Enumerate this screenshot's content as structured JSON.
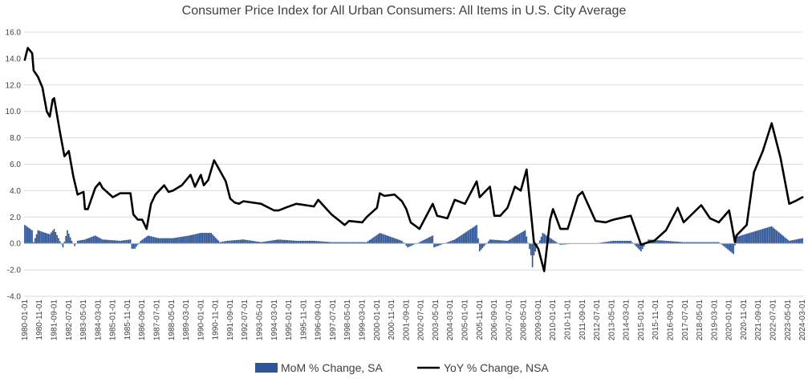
{
  "chart_data": {
    "type": "bar+line",
    "title": "Consumer Price Index for All Urban Consumers: All Items in U.S. City Average",
    "ylim": [
      -4.0,
      16.0
    ],
    "yticks": [
      "16.0",
      "14.0",
      "12.0",
      "10.0",
      "8.0",
      "6.0",
      "4.0",
      "2.0",
      "0.0",
      "-2.0",
      "-4.0"
    ],
    "ytick_values": [
      16,
      14,
      12,
      10,
      8,
      6,
      4,
      2,
      0,
      -2,
      -4
    ],
    "grid": "horizontal",
    "legend_position": "bottom",
    "x_range": [
      "1980-01-01",
      "2024-03-01"
    ],
    "xticks": [
      "1980-01-01",
      "1980-11-01",
      "1981-09-01",
      "1982-07-01",
      "1983-05-01",
      "1984-03-01",
      "1985-01-01",
      "1985-11-01",
      "1986-09-01",
      "1987-07-01",
      "1988-05-01",
      "1989-03-01",
      "1990-01-01",
      "1990-11-01",
      "1991-09-01",
      "1992-07-01",
      "1993-05-01",
      "1994-03-01",
      "1995-01-01",
      "1995-11-01",
      "1996-09-01",
      "1997-07-01",
      "1998-05-01",
      "1999-03-01",
      "2000-01-01",
      "2000-11-01",
      "2001-09-01",
      "2002-07-01",
      "2003-05-01",
      "2004-03-01",
      "2005-01-01",
      "2005-11-01",
      "2006-09-01",
      "2007-07-01",
      "2008-05-01",
      "2009-03-01",
      "2010-01-01",
      "2010-11-01",
      "2011-09-01",
      "2012-07-01",
      "2013-05-01",
      "2014-03-01",
      "2015-01-01",
      "2015-11-01",
      "2016-09-01",
      "2017-07-01",
      "2018-05-01",
      "2019-03-01",
      "2020-01-01",
      "2020-11-01",
      "2021-09-01",
      "2022-07-01",
      "2023-05-01",
      "2024-03-01"
    ],
    "series": [
      {
        "name": "MoM % Change, SA",
        "type": "bar",
        "color": "#2F5597",
        "points": [
          [
            "1980-01-01",
            1.4
          ],
          [
            "1980-06-01",
            1.0
          ],
          [
            "1980-07-01",
            0.1
          ],
          [
            "1980-10-01",
            1.0
          ],
          [
            "1981-03-01",
            0.8
          ],
          [
            "1981-06-01",
            0.7
          ],
          [
            "1981-09-01",
            1.1
          ],
          [
            "1981-12-01",
            0.4
          ],
          [
            "1982-03-01",
            -0.3
          ],
          [
            "1982-06-01",
            1.0
          ],
          [
            "1982-09-01",
            0.2
          ],
          [
            "1982-11-01",
            -0.2
          ],
          [
            "1983-01-01",
            0.2
          ],
          [
            "1983-06-01",
            0.3
          ],
          [
            "1984-01-01",
            0.6
          ],
          [
            "1984-06-01",
            0.3
          ],
          [
            "1985-06-01",
            0.2
          ],
          [
            "1986-01-01",
            0.3
          ],
          [
            "1986-02-01",
            -0.4
          ],
          [
            "1986-04-01",
            -0.4
          ],
          [
            "1986-08-01",
            0.2
          ],
          [
            "1987-01-01",
            0.6
          ],
          [
            "1987-08-01",
            0.4
          ],
          [
            "1988-06-01",
            0.4
          ],
          [
            "1989-05-01",
            0.6
          ],
          [
            "1990-01-01",
            0.8
          ],
          [
            "1990-08-01",
            0.8
          ],
          [
            "1991-02-01",
            0.1
          ],
          [
            "1991-07-01",
            0.2
          ],
          [
            "1992-06-01",
            0.3
          ],
          [
            "1993-06-01",
            0.1
          ],
          [
            "1994-06-01",
            0.3
          ],
          [
            "1995-06-01",
            0.2
          ],
          [
            "1996-06-01",
            0.2
          ],
          [
            "1997-06-01",
            0.1
          ],
          [
            "1998-06-01",
            0.1
          ],
          [
            "1999-06-01",
            0.1
          ],
          [
            "2000-03-01",
            0.8
          ],
          [
            "2001-06-01",
            0.2
          ],
          [
            "2001-10-01",
            -0.3
          ],
          [
            "2002-06-01",
            0.1
          ],
          [
            "2003-03-01",
            0.6
          ],
          [
            "2003-04-01",
            -0.3
          ],
          [
            "2004-06-01",
            0.3
          ],
          [
            "2005-09-01",
            1.4
          ],
          [
            "2005-11-01",
            -0.6
          ],
          [
            "2006-06-01",
            0.3
          ],
          [
            "2007-06-01",
            0.2
          ],
          [
            "2008-06-01",
            1.0
          ],
          [
            "2008-10-01",
            -0.9
          ],
          [
            "2008-11-01",
            -1.8
          ],
          [
            "2008-12-01",
            -0.9
          ],
          [
            "2009-06-01",
            0.8
          ],
          [
            "2010-06-01",
            -0.1
          ],
          [
            "2011-06-01",
            0.0
          ],
          [
            "2012-06-01",
            0.0
          ],
          [
            "2013-06-01",
            0.2
          ],
          [
            "2014-06-01",
            0.2
          ],
          [
            "2015-01-01",
            -0.6
          ],
          [
            "2015-06-01",
            0.3
          ],
          [
            "2016-06-01",
            0.2
          ],
          [
            "2017-06-01",
            0.1
          ],
          [
            "2018-06-01",
            0.1
          ],
          [
            "2019-06-01",
            0.1
          ],
          [
            "2020-04-01",
            -0.8
          ],
          [
            "2020-06-01",
            0.5
          ],
          [
            "2021-06-01",
            0.9
          ],
          [
            "2022-06-01",
            1.3
          ],
          [
            "2023-06-01",
            0.2
          ],
          [
            "2024-03-01",
            0.4
          ]
        ]
      },
      {
        "name": "YoY % Change, NSA",
        "type": "line",
        "color": "#000000",
        "points": [
          [
            "1980-01-01",
            13.9
          ],
          [
            "1980-03-01",
            14.8
          ],
          [
            "1980-06-01",
            14.4
          ],
          [
            "1980-07-01",
            13.1
          ],
          [
            "1980-10-01",
            12.6
          ],
          [
            "1981-01-01",
            11.8
          ],
          [
            "1981-04-01",
            10.0
          ],
          [
            "1981-06-01",
            9.6
          ],
          [
            "1981-08-01",
            10.9
          ],
          [
            "1981-09-01",
            11.0
          ],
          [
            "1982-01-01",
            8.4
          ],
          [
            "1982-04-01",
            6.6
          ],
          [
            "1982-07-01",
            7.0
          ],
          [
            "1982-10-01",
            5.1
          ],
          [
            "1983-01-01",
            3.7
          ],
          [
            "1983-05-01",
            3.9
          ],
          [
            "1983-06-01",
            2.6
          ],
          [
            "1983-08-01",
            2.6
          ],
          [
            "1984-01-01",
            4.2
          ],
          [
            "1984-04-01",
            4.6
          ],
          [
            "1984-06-01",
            4.2
          ],
          [
            "1985-01-01",
            3.5
          ],
          [
            "1985-06-01",
            3.8
          ],
          [
            "1986-01-01",
            3.8
          ],
          [
            "1986-03-01",
            2.2
          ],
          [
            "1986-06-01",
            1.8
          ],
          [
            "1986-09-01",
            1.8
          ],
          [
            "1986-12-01",
            1.1
          ],
          [
            "1987-03-01",
            3.0
          ],
          [
            "1987-06-01",
            3.7
          ],
          [
            "1987-12-01",
            4.4
          ],
          [
            "1988-03-01",
            3.9
          ],
          [
            "1988-06-01",
            4.0
          ],
          [
            "1988-12-01",
            4.4
          ],
          [
            "1989-06-01",
            5.2
          ],
          [
            "1989-09-01",
            4.3
          ],
          [
            "1990-01-01",
            5.2
          ],
          [
            "1990-03-01",
            4.4
          ],
          [
            "1990-06-01",
            4.8
          ],
          [
            "1990-10-01",
            6.3
          ],
          [
            "1991-01-01",
            5.7
          ],
          [
            "1991-06-01",
            4.7
          ],
          [
            "1991-09-01",
            3.4
          ],
          [
            "1991-12-01",
            3.1
          ],
          [
            "1992-03-01",
            3.0
          ],
          [
            "1992-06-01",
            3.2
          ],
          [
            "1993-06-01",
            3.0
          ],
          [
            "1994-03-01",
            2.5
          ],
          [
            "1994-06-01",
            2.5
          ],
          [
            "1995-01-01",
            2.8
          ],
          [
            "1995-06-01",
            3.0
          ],
          [
            "1996-06-01",
            2.8
          ],
          [
            "1996-09-01",
            3.3
          ],
          [
            "1997-06-01",
            2.2
          ],
          [
            "1998-03-01",
            1.4
          ],
          [
            "1998-06-01",
            1.7
          ],
          [
            "1999-03-01",
            1.6
          ],
          [
            "1999-06-01",
            2.0
          ],
          [
            "2000-01-01",
            2.7
          ],
          [
            "2000-03-01",
            3.8
          ],
          [
            "2000-06-01",
            3.6
          ],
          [
            "2001-01-01",
            3.7
          ],
          [
            "2001-06-01",
            3.2
          ],
          [
            "2001-09-01",
            2.6
          ],
          [
            "2001-12-01",
            1.6
          ],
          [
            "2002-06-01",
            1.1
          ],
          [
            "2003-03-01",
            3.0
          ],
          [
            "2003-06-01",
            2.1
          ],
          [
            "2004-01-01",
            1.9
          ],
          [
            "2004-06-01",
            3.3
          ],
          [
            "2005-01-01",
            3.0
          ],
          [
            "2005-09-01",
            4.7
          ],
          [
            "2005-11-01",
            3.5
          ],
          [
            "2006-06-01",
            4.3
          ],
          [
            "2006-09-01",
            2.1
          ],
          [
            "2007-01-01",
            2.1
          ],
          [
            "2007-06-01",
            2.7
          ],
          [
            "2007-11-01",
            4.3
          ],
          [
            "2008-03-01",
            4.0
          ],
          [
            "2008-07-01",
            5.6
          ],
          [
            "2008-12-01",
            0.1
          ],
          [
            "2009-03-01",
            -0.4
          ],
          [
            "2009-07-01",
            -2.1
          ],
          [
            "2009-11-01",
            1.8
          ],
          [
            "2010-01-01",
            2.6
          ],
          [
            "2010-06-01",
            1.1
          ],
          [
            "2010-11-01",
            1.1
          ],
          [
            "2011-06-01",
            3.6
          ],
          [
            "2011-09-01",
            3.9
          ],
          [
            "2012-06-01",
            1.7
          ],
          [
            "2013-01-01",
            1.6
          ],
          [
            "2013-06-01",
            1.8
          ],
          [
            "2014-06-01",
            2.1
          ],
          [
            "2015-01-01",
            -0.1
          ],
          [
            "2015-06-01",
            0.1
          ],
          [
            "2015-10-01",
            0.2
          ],
          [
            "2016-06-01",
            1.0
          ],
          [
            "2017-02-01",
            2.7
          ],
          [
            "2017-06-01",
            1.6
          ],
          [
            "2018-06-01",
            2.9
          ],
          [
            "2018-12-01",
            1.9
          ],
          [
            "2019-06-01",
            1.6
          ],
          [
            "2020-01-01",
            2.5
          ],
          [
            "2020-05-01",
            0.1
          ],
          [
            "2020-06-01",
            0.6
          ],
          [
            "2021-01-01",
            1.4
          ],
          [
            "2021-06-01",
            5.4
          ],
          [
            "2021-12-01",
            7.0
          ],
          [
            "2022-06-01",
            9.1
          ],
          [
            "2022-12-01",
            6.5
          ],
          [
            "2023-06-01",
            3.0
          ],
          [
            "2023-10-01",
            3.2
          ],
          [
            "2024-03-01",
            3.5
          ]
        ]
      }
    ]
  }
}
